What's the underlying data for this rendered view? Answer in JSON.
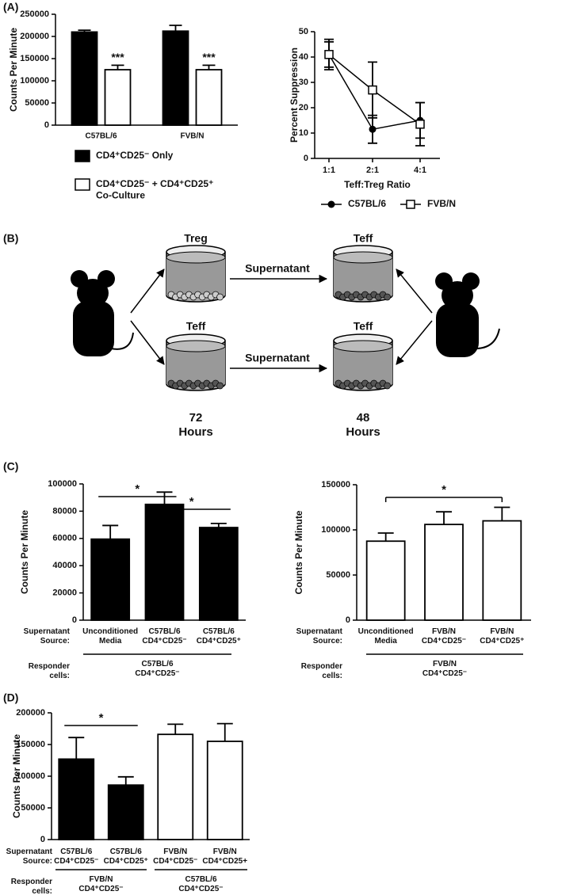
{
  "panel_labels": [
    "(A)",
    "(B)",
    "(C)",
    "(D)"
  ],
  "diagram": {
    "dishes": [
      "Treg",
      "Teff",
      "Teff",
      "Teff"
    ],
    "arrows": [
      "Supernatant",
      "Supernatant"
    ],
    "times": [
      "72\nHours",
      "48\nHours"
    ]
  },
  "chart_data": [
    {
      "type": "bar",
      "ylabel": "Counts Per Minute",
      "categories": [
        "C57BL/6",
        "FVB/N"
      ],
      "series": [
        {
          "name": "CD4⁺CD25⁻ Only",
          "color": "#000000",
          "values": [
            210000,
            212000
          ],
          "errors": [
            4000,
            13000
          ]
        },
        {
          "name": "CD4⁺CD25⁻ + CD4⁺CD25⁺\nCo-Culture",
          "color": "#ffffff",
          "values": [
            125000,
            125000
          ],
          "errors": [
            10000,
            10000
          ],
          "significance": [
            "***",
            "***"
          ]
        }
      ],
      "ylim": [
        0,
        250000
      ],
      "yticks": [
        0,
        50000,
        100000,
        150000,
        200000,
        250000
      ]
    },
    {
      "type": "line",
      "xlabel": "Teff:Treg Ratio",
      "ylabel": "Percent Suppression",
      "categories": [
        "1:1",
        "2:1",
        "4:1"
      ],
      "series": [
        {
          "name": "C57BL/6",
          "color": "#000000",
          "marker": "circle",
          "values": [
            41,
            11.5,
            15
          ],
          "errors": [
            6,
            5.5,
            7
          ]
        },
        {
          "name": "FVB/N",
          "color": "#000000",
          "marker": "open-square",
          "values": [
            41,
            27,
            13.5
          ],
          "errors": [
            5,
            11,
            8.5
          ]
        }
      ],
      "ylim": [
        0,
        50
      ],
      "yticks": [
        0,
        10,
        20,
        30,
        40,
        50
      ]
    },
    {
      "type": "bar",
      "ylabel": "Counts Per Minute",
      "categories": [
        "Unconditioned\nMedia",
        "C57BL/6\nCD4⁺CD25⁻",
        "C57BL/6\nCD4⁺CD25⁺"
      ],
      "values": [
        59500,
        85000,
        68000
      ],
      "errors": [
        10000,
        9000,
        3000
      ],
      "colors": [
        "#000000",
        "#000000",
        "#000000"
      ],
      "ylim": [
        0,
        100000
      ],
      "yticks": [
        0,
        20000,
        40000,
        60000,
        80000,
        100000
      ],
      "significance": [
        "*",
        "*"
      ],
      "row_labels": [
        "Supernatant\nSource:",
        "Responder\ncells:"
      ],
      "responder_groups": [
        "C57BL/6\nCD4⁺CD25⁻"
      ]
    },
    {
      "type": "bar",
      "ylabel": "Counts Per Minute",
      "categories": [
        "Unconditioned\nMedia",
        "FVB/N\nCD4⁺CD25⁻",
        "FVB/N\nCD4⁺CD25⁺"
      ],
      "values": [
        87500,
        106000,
        110000
      ],
      "errors": [
        9000,
        14000,
        15000
      ],
      "colors": [
        "#ffffff",
        "#ffffff",
        "#ffffff"
      ],
      "ylim": [
        0,
        150000
      ],
      "yticks": [
        0,
        50000,
        100000,
        150000
      ],
      "significance": [
        "*"
      ],
      "row_labels": [
        "Supernatant\nSource:",
        "Responder\ncells:"
      ],
      "responder_groups": [
        "FVB/N\nCD4⁺CD25⁻"
      ]
    },
    {
      "type": "bar",
      "ylabel": "Counts Per Minute",
      "categories": [
        "C57BL/6\nCD4⁺CD25⁻",
        "C57BL/6\nCD4⁺CD25⁺",
        "FVB/N\nCD4⁺CD25⁻",
        "FVB/N\nCD4⁺CD25+"
      ],
      "values": [
        127000,
        86000,
        166000,
        155000
      ],
      "errors": [
        34000,
        13000,
        16000,
        28000
      ],
      "colors": [
        "#000000",
        "#000000",
        "#ffffff",
        "#ffffff"
      ],
      "ylim": [
        0,
        200000
      ],
      "yticks": [
        0,
        50000,
        100000,
        150000,
        200000
      ],
      "significance": [
        "*"
      ],
      "row_labels": [
        "Supernatant\nSource:",
        "Responder\ncells:"
      ],
      "responder_groups": [
        "FVB/N\nCD4⁺CD25⁻",
        "C57BL/6\nCD4⁺CD25⁻"
      ]
    }
  ]
}
